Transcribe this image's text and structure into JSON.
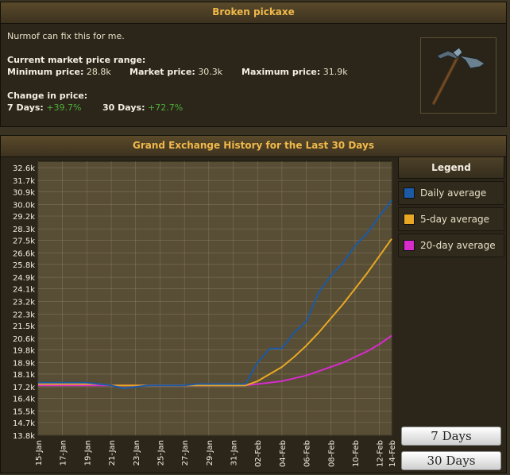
{
  "item": {
    "name": "Broken pickaxe",
    "examine": "Nurmof can fix this for me.",
    "range_heading": "Current market price range:",
    "min_label": "Minimum price:",
    "min_value": "28.8k",
    "market_label": "Market price:",
    "market_value": "30.3k",
    "max_label": "Maximum price:",
    "max_value": "31.9k",
    "change_heading": "Change in price:",
    "d7_label": "7 Days:",
    "d7_value": "+39.7%",
    "d30_label": "30 Days:",
    "d30_value": "+72.7%"
  },
  "history": {
    "title": "Grand Exchange History for the Last 30 Days"
  },
  "legend": {
    "title": "Legend",
    "items": [
      {
        "label": "Daily average",
        "color": "#1c5aa6"
      },
      {
        "label": "5-day average",
        "color": "#e8a823"
      },
      {
        "label": "20-day average",
        "color": "#d52ccb"
      }
    ]
  },
  "buttons": {
    "seven": "7 Days",
    "thirty": "30 Days"
  },
  "colors": {
    "accent": "#f0b94a",
    "positive": "#4fae3a",
    "plot_bg": "#584d35"
  },
  "chart_data": {
    "type": "line",
    "title": "Grand Exchange History for the Last 30 Days",
    "ylim": [
      13.8,
      33.05
    ],
    "y_ticks": [
      "32.6k",
      "31.7k",
      "30.9k",
      "30.0k",
      "29.2k",
      "28.3k",
      "27.5k",
      "26.6k",
      "25.8k",
      "24.9k",
      "24.1k",
      "23.2k",
      "22.3k",
      "21.5k",
      "20.6k",
      "19.8k",
      "18.9k",
      "18.1k",
      "17.2k",
      "16.4k",
      "15.5k",
      "14.7k",
      "13.8k"
    ],
    "x_ticks": [
      "15-Jan",
      "17-Jan",
      "19-Jan",
      "21-Jan",
      "23-Jan",
      "25-Jan",
      "27-Jan",
      "29-Jan",
      "31-Jan",
      "02-Feb",
      "04-Feb",
      "06-Feb",
      "08-Feb",
      "10-Feb",
      "12-Feb",
      "14-Feb"
    ],
    "x_days": 30,
    "grid": true,
    "series": [
      {
        "name": "Daily average",
        "color": "#1c5aa6",
        "values": [
          17.5,
          17.5,
          17.5,
          17.5,
          17.5,
          17.4,
          17.3,
          17.1,
          17.2,
          17.3,
          17.3,
          17.3,
          17.3,
          17.4,
          17.4,
          17.4,
          17.4,
          17.4,
          18.9,
          19.9,
          19.9,
          21.0,
          21.8,
          23.8,
          25.0,
          25.9,
          27.1,
          28.0,
          29.2,
          30.3
        ]
      },
      {
        "name": "5-day average",
        "color": "#e8a823",
        "values": [
          17.4,
          17.4,
          17.4,
          17.4,
          17.4,
          17.4,
          17.3,
          17.3,
          17.3,
          17.3,
          17.3,
          17.3,
          17.3,
          17.3,
          17.3,
          17.3,
          17.3,
          17.3,
          17.6,
          18.1,
          18.6,
          19.3,
          20.1,
          21.0,
          22.0,
          23.0,
          24.1,
          25.2,
          26.4,
          27.6
        ]
      },
      {
        "name": "20-day average",
        "color": "#d52ccb",
        "values": [
          17.3,
          17.3,
          17.3,
          17.3,
          17.3,
          17.3,
          17.3,
          17.3,
          17.3,
          17.3,
          17.3,
          17.3,
          17.3,
          17.3,
          17.3,
          17.3,
          17.3,
          17.3,
          17.4,
          17.5,
          17.6,
          17.8,
          18.0,
          18.3,
          18.6,
          18.9,
          19.3,
          19.7,
          20.2,
          20.8
        ]
      }
    ]
  }
}
